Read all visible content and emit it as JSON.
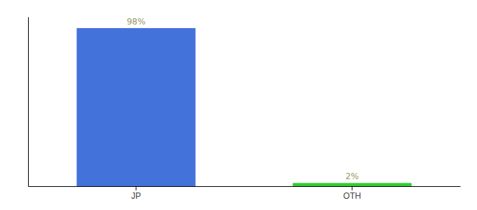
{
  "chart_data": {
    "type": "bar",
    "categories": [
      "JP",
      "OTH"
    ],
    "values": [
      98,
      2
    ],
    "value_labels": [
      "98%",
      "2%"
    ],
    "colors": [
      "#4472db",
      "#33cc33"
    ],
    "ylim": [
      0,
      105
    ],
    "yticks": [],
    "grid": false,
    "data_labels": true,
    "tick_labels": "x"
  }
}
